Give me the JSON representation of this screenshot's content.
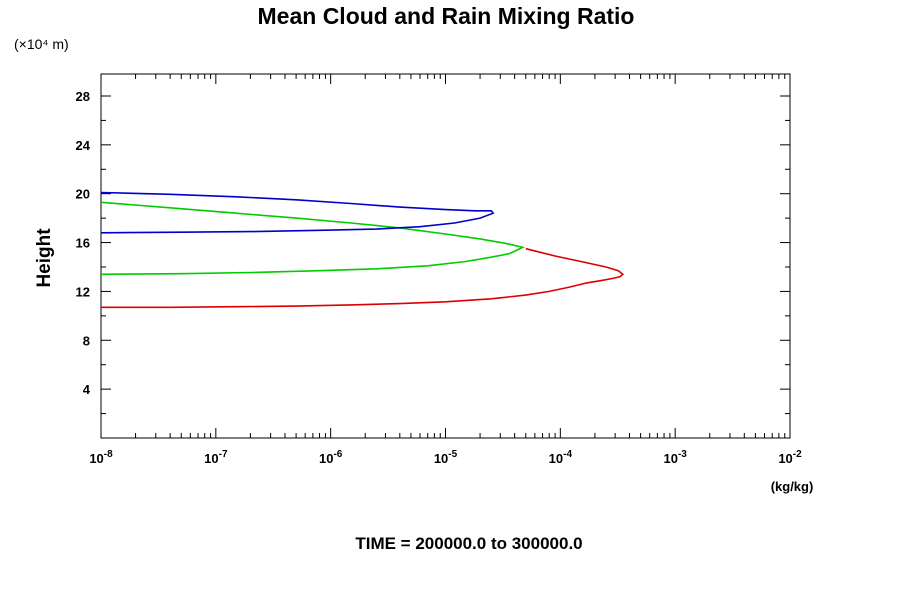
{
  "chart_data": {
    "type": "line",
    "title": "Mean Cloud and Rain Mixing Ratio",
    "ylabel": "Height",
    "y_unit": "(×10⁴ m)",
    "x_unit": "(kg/kg)",
    "footer": "TIME = 200000.0 to 300000.0",
    "xscale": "log",
    "xlim": [
      1e-08,
      0.01
    ],
    "ylim": [
      0,
      29.8
    ],
    "x_tick_exponents": [
      "-8",
      "-7",
      "-6",
      "-5",
      "-4",
      "-3",
      "-2"
    ],
    "y_ticks": [
      "4",
      "8",
      "12",
      "16",
      "20",
      "24",
      "28"
    ],
    "grid": false,
    "series": [
      {
        "color": "#dd0000",
        "x": [
          1e-08,
          4e-08,
          1.5e-07,
          5e-07,
          1.5e-06,
          4e-06,
          1e-05,
          2.5e-05,
          5e-05,
          8e-05,
          0.00012,
          0.00017,
          0.00023,
          0.00028,
          0.00033,
          0.00035,
          0.00032,
          0.00025,
          0.00016,
          9e-05,
          5e-05
        ],
        "y": [
          10.7,
          10.7,
          10.75,
          10.8,
          10.9,
          11.0,
          11.15,
          11.4,
          11.7,
          12.0,
          12.35,
          12.7,
          12.9,
          13.05,
          13.2,
          13.4,
          13.7,
          14.0,
          14.4,
          14.9,
          15.5
        ]
      },
      {
        "color": "#00cc00",
        "x": [
          1e-08,
          5e-08,
          2e-07,
          8e-07,
          2.5e-06,
          7e-06,
          1.5e-05,
          2.5e-05,
          3.6e-05,
          4.7e-05,
          3.5e-05,
          2e-05,
          1e-05,
          4e-06,
          1.5e-06,
          5e-07,
          1.5e-07,
          4e-08,
          1e-08
        ],
        "y": [
          13.4,
          13.45,
          13.55,
          13.7,
          13.85,
          14.1,
          14.45,
          14.8,
          15.1,
          15.6,
          15.9,
          16.3,
          16.7,
          17.2,
          17.6,
          18.0,
          18.4,
          18.85,
          19.3
        ]
      },
      {
        "color": "#0000cc",
        "x": [
          1e-08,
          5e-08,
          2e-07,
          8e-07,
          2.5e-06,
          6e-06,
          1.2e-05,
          2e-05,
          2.6e-05,
          2.5e-05,
          1.8e-05,
          1e-05,
          4e-06,
          1.5e-06,
          5e-07,
          1.5e-07,
          4e-08,
          1e-08
        ],
        "y": [
          16.8,
          16.85,
          16.9,
          17.0,
          17.1,
          17.3,
          17.6,
          18.0,
          18.4,
          18.6,
          18.6,
          18.7,
          18.9,
          19.2,
          19.5,
          19.75,
          19.95,
          20.1
        ]
      }
    ]
  }
}
